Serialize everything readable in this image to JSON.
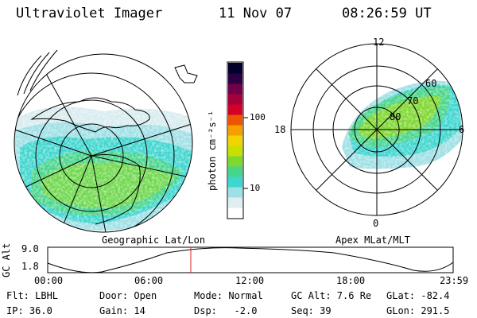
{
  "header": {
    "title": "Ultraviolet Imager",
    "date": "11 Nov 07",
    "time": "08:26:59 UT"
  },
  "colorbar": {
    "unit_label": "photon cm⁻²s⁻¹",
    "ticks": [
      "100",
      "10"
    ],
    "colors": [
      "#ffffff",
      "#e0eef2",
      "#9fe0e6",
      "#3fd6cf",
      "#47d58a",
      "#7fd832",
      "#c8e000",
      "#f2d400",
      "#f5a000",
      "#ee5500",
      "#d4002a",
      "#a6003a",
      "#70004a",
      "#2a0042",
      "#000028"
    ]
  },
  "geo_panel": {
    "caption": "Geographic Lat/Lon"
  },
  "apex_panel": {
    "caption": "Apex MLat/MLT",
    "mlt_labels": {
      "top": "12",
      "left": "18",
      "right": "6",
      "bottom": "0"
    },
    "lat_labels": [
      "60",
      "70",
      "80"
    ]
  },
  "altitude_plot": {
    "ylabel": "GC Alt",
    "yticks": [
      "9.0",
      "1.8"
    ],
    "xticks": [
      "00:00",
      "06:00",
      "12:00",
      "18:00",
      "23:59"
    ],
    "marker_time": "08:26:59"
  },
  "info": {
    "flt": "Flt: LBHL",
    "ip": "IP: 36.0",
    "door": "Door: Open",
    "gain": "Gain: 14",
    "mode": "Mode: Normal",
    "dsp": "Dsp:   -2.0",
    "gc_alt": "GC Alt: 7.6 Re",
    "seq": "Seq: 39",
    "glat": "GLat: -82.4",
    "glon": "GLon: 291.5"
  }
}
